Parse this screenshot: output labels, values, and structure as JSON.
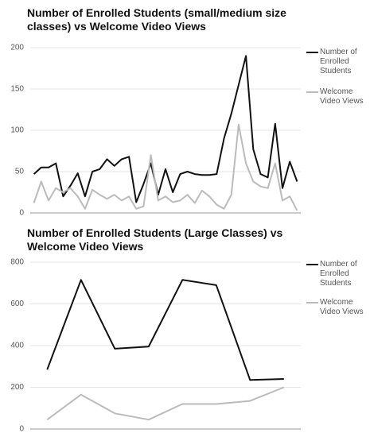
{
  "chart_data": [
    {
      "type": "line",
      "title": "Number of Enrolled Students (small/medium size classes) vs Welcome Video Views",
      "categories": [
        null,
        null,
        null,
        null,
        null,
        null,
        null,
        null,
        null,
        null,
        null,
        null,
        null,
        null,
        null,
        null,
        null,
        null,
        null,
        null,
        null,
        null,
        null,
        null,
        null,
        null,
        null,
        null,
        null,
        null,
        null,
        null,
        null,
        null,
        null,
        null,
        null
      ],
      "series": [
        {
          "name": "Number of Enrolled Students",
          "color": "#111111",
          "values": [
            47,
            55,
            55,
            60,
            20,
            33,
            48,
            20,
            50,
            53,
            65,
            57,
            65,
            68,
            13,
            35,
            60,
            22,
            53,
            25,
            47,
            50,
            47,
            46,
            46,
            47,
            90,
            120,
            155,
            190,
            77,
            47,
            43,
            108,
            30,
            62,
            38
          ]
        },
        {
          "name": "Welcome Video Views",
          "color": "#bbbbbb",
          "values": [
            12,
            38,
            15,
            30,
            25,
            30,
            20,
            5,
            28,
            22,
            17,
            22,
            15,
            20,
            5,
            8,
            70,
            15,
            20,
            13,
            15,
            22,
            12,
            27,
            20,
            10,
            5,
            22,
            107,
            60,
            38,
            32,
            30,
            60,
            15,
            20,
            3
          ]
        }
      ],
      "ylim": [
        0,
        200
      ],
      "yticks": [
        0,
        50,
        100,
        150,
        200
      ],
      "grid": true,
      "legend": "right"
    },
    {
      "type": "line",
      "title": "Number of Enrolled Students (Large Classes) vs Welcome Video Views",
      "categories": [
        null,
        null,
        null,
        null,
        null,
        null,
        null,
        null
      ],
      "series": [
        {
          "name": "Number of Enrolled Students",
          "color": "#111111",
          "values": [
            285,
            715,
            385,
            395,
            715,
            690,
            235,
            240
          ]
        },
        {
          "name": "Welcome Video Views",
          "color": "#bbbbbb",
          "values": [
            45,
            165,
            75,
            45,
            120,
            120,
            135,
            200
          ]
        }
      ],
      "ylim": [
        0,
        800
      ],
      "yticks": [
        0,
        200,
        400,
        600,
        800
      ],
      "grid": true,
      "legend": "right"
    }
  ]
}
